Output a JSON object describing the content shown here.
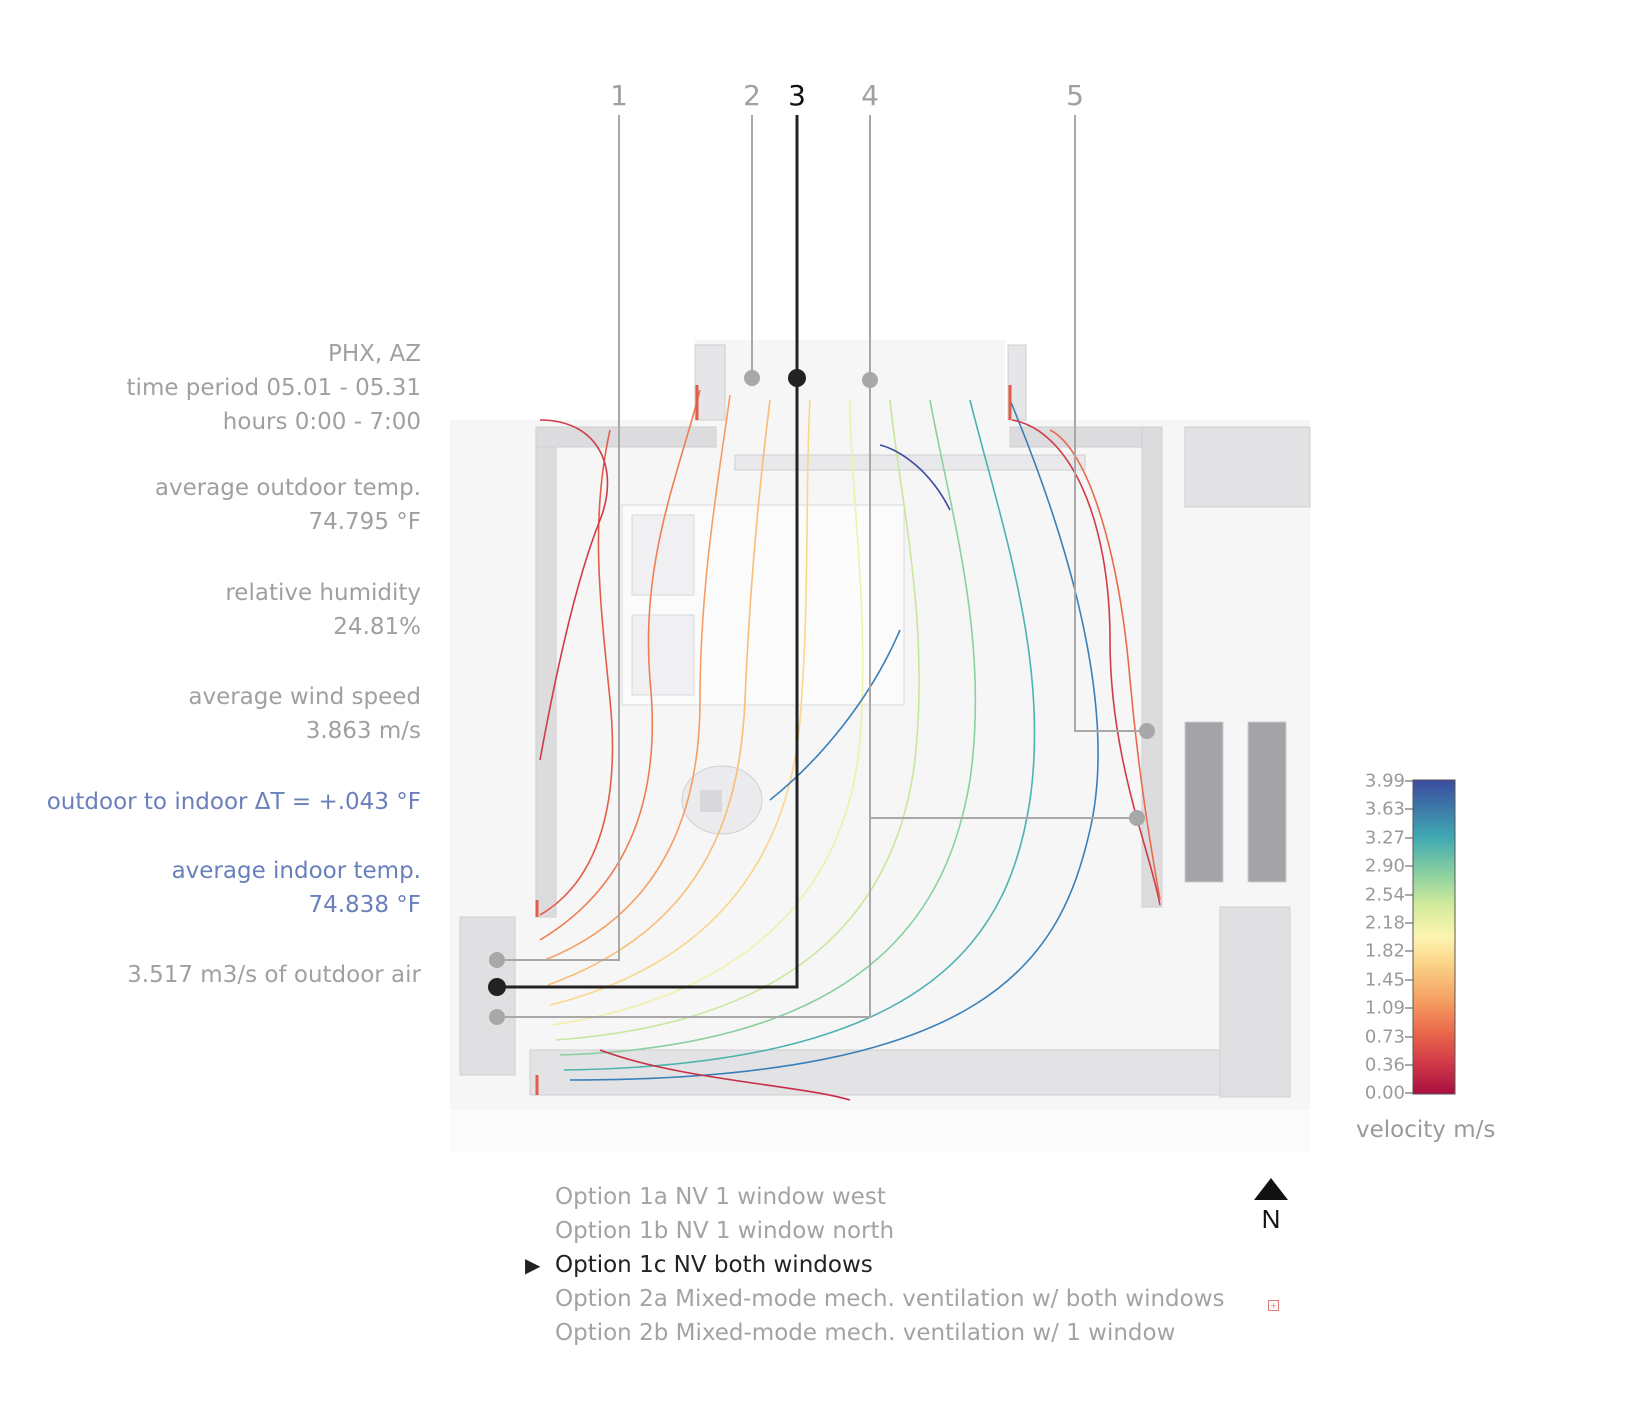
{
  "info": {
    "location": "PHX, AZ",
    "time_period": "time period 05.01 - 05.31",
    "hours": "hours 0:00 - 7:00",
    "outdoor_temp_label": "average outdoor temp.",
    "outdoor_temp_value": "74.795 °F",
    "humidity_label": "relative humidity",
    "humidity_value": "24.81%",
    "wind_label": "average wind speed",
    "wind_value": "3.863 m/s",
    "delta_t": "outdoor to indoor ΔT = +.043 °F",
    "indoor_temp_label": "average indoor temp.",
    "indoor_temp_value": "74.838 °F",
    "outdoor_air": "3.517 m3/s of outdoor air"
  },
  "section_markers": [
    "1",
    "2",
    "3",
    "4",
    "5"
  ],
  "active_marker": "3",
  "legend": {
    "ticks": [
      "3.99",
      "3.63",
      "3.27",
      "2.90",
      "2.54",
      "2.18",
      "1.82",
      "1.45",
      "1.09",
      "0.73",
      "0.36",
      "0.00"
    ],
    "label": "velocity  m/s",
    "colors": [
      "#3b4ba0",
      "#3a7fb8",
      "#42aab1",
      "#72c49c",
      "#b2dc94",
      "#eef2a6",
      "#fde7a0",
      "#f9c07a",
      "#f38f5a",
      "#e35c48",
      "#c72e48",
      "#a80f3f"
    ]
  },
  "options": [
    {
      "label": "Option 1a NV 1 window west",
      "active": false
    },
    {
      "label": "Option 1b NV 1 window north",
      "active": false
    },
    {
      "label": "Option 1c NV both windows",
      "active": true
    },
    {
      "label": "Option 2a Mixed-mode mech. ventilation w/ both windows",
      "active": false
    },
    {
      "label": "Option 2b Mixed-mode mech. ventilation w/ 1 window",
      "active": false
    }
  ],
  "north_label": "N",
  "colors": {
    "accent_blue": "#6a80bd",
    "gray_text": "#a0a0a0",
    "active_line": "#222222"
  }
}
